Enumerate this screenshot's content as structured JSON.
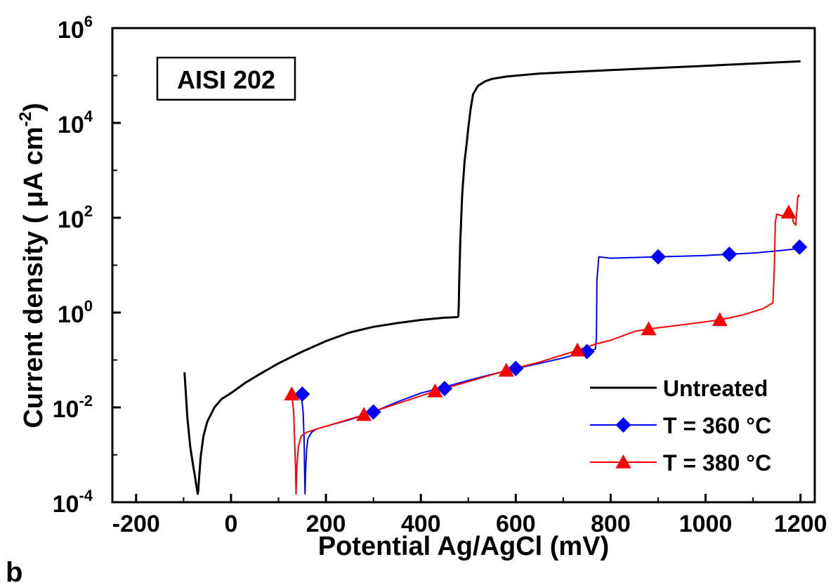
{
  "chart_data": {
    "type": "line",
    "annotation": "AISI 202",
    "panel_label": "b",
    "xlabel": "Potential Ag/AgCl (mV)",
    "ylabel": "Current density ( μA cm",
    "ylabel_sup": "-2",
    "ylabel_end": ")",
    "xlim": [
      -250,
      1230
    ],
    "ylim": [
      0.0001,
      1000000
    ],
    "yscale": "log",
    "x_ticks": [
      -200,
      0,
      200,
      400,
      600,
      800,
      1000,
      1200
    ],
    "x_tick_labels": [
      "-200",
      "0",
      "200",
      "400",
      "600",
      "800",
      "1000",
      "1200"
    ],
    "y_ticks": [
      0.0001,
      0.01,
      1,
      100,
      10000,
      1000000
    ],
    "y_tick_labels": [
      {
        "base": "10",
        "exp": "-4"
      },
      {
        "base": "10",
        "exp": "-2"
      },
      {
        "base": "10",
        "exp": "0"
      },
      {
        "base": "10",
        "exp": "2"
      },
      {
        "base": "10",
        "exp": "4"
      },
      {
        "base": "10",
        "exp": "6"
      }
    ],
    "legend_position": "bottom-right",
    "grid": false,
    "series": [
      {
        "name": "Untreated",
        "color": "#000000",
        "marker": "none",
        "x": [
          -98,
          -92,
          -86,
          -80,
          -76,
          -73,
          -71,
          -70,
          -69,
          -67,
          -64,
          -58,
          -50,
          -35,
          -20,
          0,
          30,
          60,
          100,
          150,
          200,
          250,
          300,
          350,
          400,
          450,
          477,
          479,
          480,
          481,
          483,
          487,
          492,
          497,
          500,
          505,
          510,
          520,
          535,
          550,
          580,
          650,
          800,
          1000,
          1200
        ],
        "y": [
          0.055,
          0.006,
          0.0015,
          0.0006,
          0.00035,
          0.00022,
          0.00017,
          0.00015,
          0.00018,
          0.00035,
          0.0009,
          0.0025,
          0.005,
          0.01,
          0.015,
          0.02,
          0.033,
          0.05,
          0.085,
          0.15,
          0.25,
          0.38,
          0.5,
          0.6,
          0.7,
          0.78,
          0.8,
          0.85,
          1.5,
          5,
          30,
          300,
          1500,
          4000,
          8000,
          20000,
          40000,
          60000,
          75000,
          85000,
          95000,
          110000,
          130000,
          160000,
          200000
        ]
      },
      {
        "name": "T = 360 °C",
        "color": "#0000ff",
        "marker": "diamond",
        "x": [
          148,
          152,
          154,
          155,
          156,
          157,
          159,
          162,
          170,
          180,
          200,
          250,
          300,
          350,
          400,
          450,
          500,
          550,
          600,
          650,
          700,
          750,
          768,
          770,
          771,
          775,
          800,
          850,
          900,
          950,
          1000,
          1050,
          1100,
          1150,
          1190,
          1198
        ],
        "y": [
          0.019,
          0.008,
          0.002,
          0.0005,
          0.00015,
          0.0004,
          0.0012,
          0.0022,
          0.003,
          0.0035,
          0.004,
          0.0055,
          0.008,
          0.013,
          0.02,
          0.027,
          0.037,
          0.05,
          0.066,
          0.085,
          0.11,
          0.15,
          0.17,
          0.3,
          5,
          15,
          14,
          14.5,
          15,
          15.5,
          16,
          17,
          18,
          20,
          22,
          24
        ]
      },
      {
        "name": "T = 380 °C",
        "color": "#ff0000",
        "marker": "triangle",
        "x": [
          128,
          132,
          134,
          136,
          137,
          139,
          142,
          148,
          160,
          180,
          200,
          280,
          350,
          430,
          500,
          580,
          650,
          730,
          770,
          800,
          850,
          880,
          950,
          1030,
          1080,
          1120,
          1142,
          1145,
          1147,
          1150,
          1160,
          1170,
          1180,
          1185,
          1190,
          1192,
          1194,
          1196,
          1198
        ],
        "y": [
          0.019,
          0.008,
          0.002,
          0.0005,
          0.00015,
          0.0006,
          0.0015,
          0.0025,
          0.003,
          0.0035,
          0.004,
          0.007,
          0.012,
          0.022,
          0.035,
          0.06,
          0.09,
          0.16,
          0.22,
          0.26,
          0.4,
          0.45,
          0.55,
          0.7,
          0.9,
          1.2,
          1.6,
          10,
          80,
          120,
          110,
          115,
          130,
          80,
          70,
          130,
          260,
          300,
          280
        ]
      }
    ],
    "marker_points": [
      {
        "series": 1,
        "x": [
          150,
          300,
          450,
          600,
          750,
          900,
          1050,
          1198
        ],
        "y": [
          0.019,
          0.008,
          0.025,
          0.066,
          0.15,
          15,
          17,
          24
        ]
      },
      {
        "series": 2,
        "x": [
          128,
          280,
          430,
          580,
          730,
          880,
          1030,
          1175
        ],
        "y": [
          0.019,
          0.007,
          0.022,
          0.06,
          0.16,
          0.45,
          0.7,
          130
        ]
      }
    ]
  }
}
